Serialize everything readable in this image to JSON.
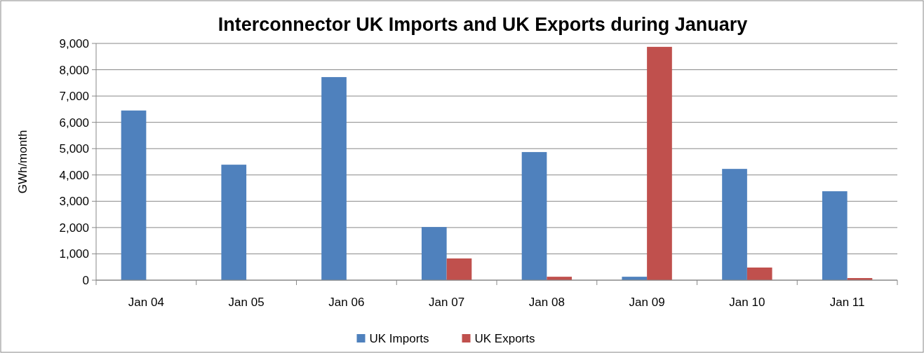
{
  "chart_data": {
    "type": "bar",
    "title": "Interconnector UK Imports and UK Exports during January",
    "ylabel": "GWh/month",
    "categories": [
      "Jan 04",
      "Jan 05",
      "Jan 06",
      "Jan 07",
      "Jan 08",
      "Jan 09",
      "Jan 10",
      "Jan 11"
    ],
    "series": [
      {
        "name": "UK Imports",
        "color": "#4f81bd",
        "values": [
          6450,
          4390,
          7720,
          2020,
          4870,
          130,
          4230,
          3380
        ]
      },
      {
        "name": "UK Exports",
        "color": "#c0504d",
        "values": [
          0,
          0,
          0,
          825,
          130,
          8870,
          480,
          80
        ]
      }
    ],
    "ylim": [
      0,
      9000
    ],
    "yticks": [
      {
        "value": 0,
        "label": "0"
      },
      {
        "value": 1000,
        "label": "1,000"
      },
      {
        "value": 2000,
        "label": "2,000"
      },
      {
        "value": 3000,
        "label": "3,000"
      },
      {
        "value": 4000,
        "label": "4,000"
      },
      {
        "value": 5000,
        "label": "5,000"
      },
      {
        "value": 6000,
        "label": "6,000"
      },
      {
        "value": 7000,
        "label": "7,000"
      },
      {
        "value": 8000,
        "label": "8,000"
      },
      {
        "value": 9000,
        "label": "9,000"
      }
    ],
    "grid": "y",
    "legend": "bottom"
  }
}
